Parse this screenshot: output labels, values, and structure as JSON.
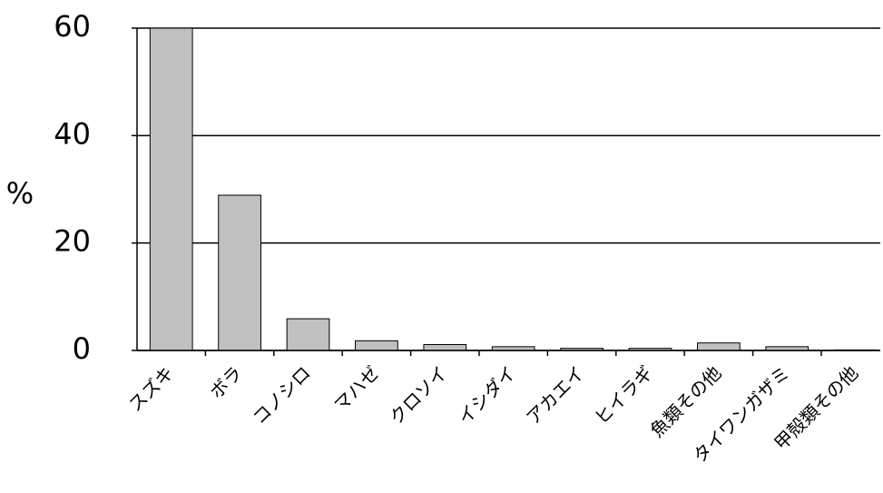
{
  "chart_data": {
    "type": "bar",
    "ylabel": "%",
    "categories": [
      "スズキ",
      "ボラ",
      "コノシロ",
      "マハゼ",
      "クロソイ",
      "イシダイ",
      "アカエイ",
      "ヒイラギ",
      "魚類その他",
      "タイワンガザミ",
      "甲殻類その他"
    ],
    "values": [
      60,
      28.9,
      5.9,
      1.8,
      1.1,
      0.7,
      0.4,
      0.4,
      1.4,
      0.7,
      0.1
    ],
    "color": "#c0c0c0",
    "ylim": [
      0,
      60
    ],
    "yticks": [
      0,
      20,
      40,
      60
    ],
    "grid": true
  }
}
